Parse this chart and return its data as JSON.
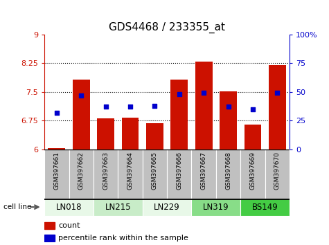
{
  "title": "GDS4468 / 233355_at",
  "samples": [
    "GSM397661",
    "GSM397662",
    "GSM397663",
    "GSM397664",
    "GSM397665",
    "GSM397666",
    "GSM397667",
    "GSM397668",
    "GSM397669",
    "GSM397670"
  ],
  "cell_lines": [
    {
      "name": "LN018",
      "indices": [
        0,
        1
      ],
      "color": "#e8f8e8"
    },
    {
      "name": "LN215",
      "indices": [
        2,
        3
      ],
      "color": "#c8ecc8"
    },
    {
      "name": "LN229",
      "indices": [
        4,
        5
      ],
      "color": "#e8f8e8"
    },
    {
      "name": "LN319",
      "indices": [
        6,
        7
      ],
      "color": "#88dd88"
    },
    {
      "name": "BS149",
      "indices": [
        8,
        9
      ],
      "color": "#44cc44"
    }
  ],
  "count_values": [
    6.03,
    7.82,
    6.81,
    6.82,
    6.68,
    7.82,
    8.28,
    7.52,
    6.65,
    8.19
  ],
  "percentile_values": [
    32,
    47,
    37,
    37,
    38,
    48,
    49,
    37,
    35,
    49
  ],
  "ylim_left": [
    6,
    9
  ],
  "ylim_right": [
    0,
    100
  ],
  "yticks_left": [
    6,
    6.75,
    7.5,
    8.25,
    9
  ],
  "yticks_right": [
    0,
    25,
    50,
    75,
    100
  ],
  "bar_color": "#cc1100",
  "dot_color": "#0000cc",
  "bar_bottom": 6,
  "legend_count_label": "count",
  "legend_percentile_label": "percentile rank within the sample",
  "cell_line_label": "cell line",
  "title_fontsize": 11,
  "tick_fontsize": 8,
  "label_fontsize": 8,
  "gsm_fontsize": 6.5
}
